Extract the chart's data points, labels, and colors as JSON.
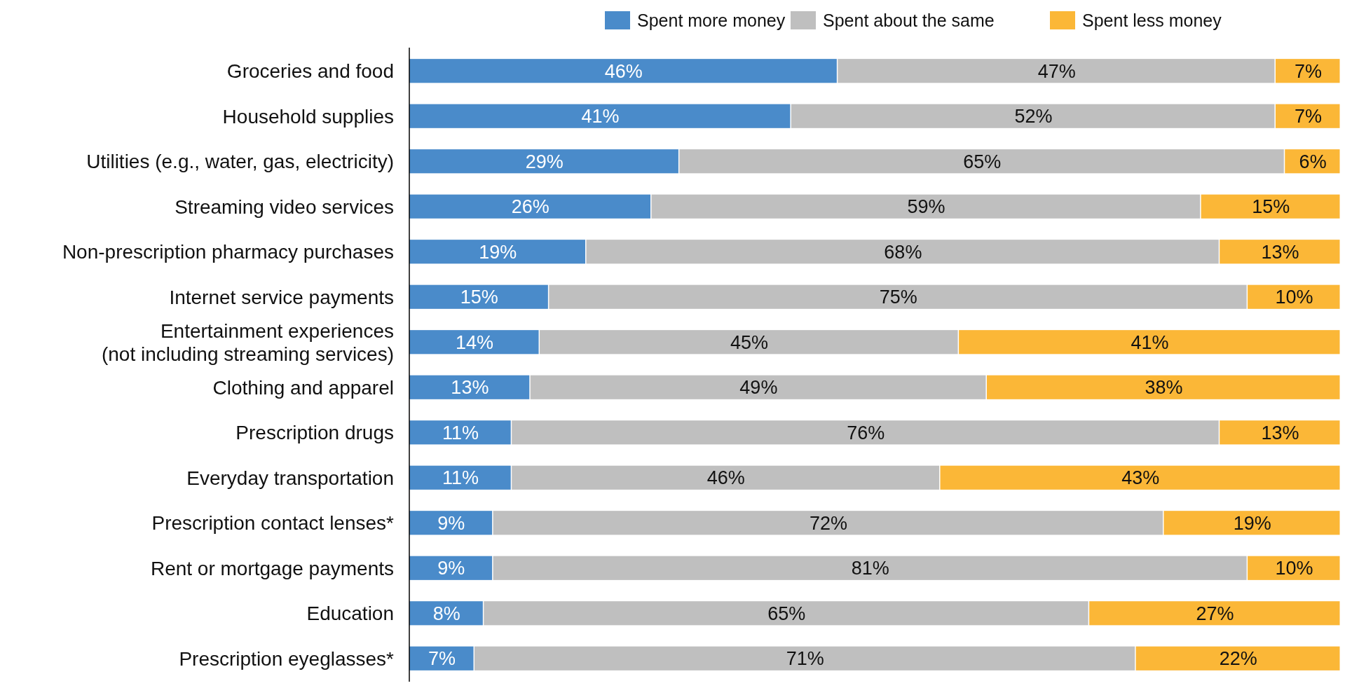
{
  "chart_data": {
    "type": "bar",
    "orientation": "horizontal",
    "stacked": true,
    "legend": "top right",
    "xlim": [
      0,
      100
    ],
    "tick_labels": "y",
    "categories": [
      "Groceries and food",
      "Household supplies",
      "Utilities (e.g., water, gas, electricity)",
      "Streaming video services",
      "Non-prescription pharmacy purchases",
      "Internet service payments",
      "Entertainment experiences (not including streaming services)",
      "Clothing and apparel",
      "Prescription drugs",
      "Everyday transportation",
      "Prescription contact lenses*",
      "Rent or mortgage payments",
      "Education",
      "Prescription eyeglasses*"
    ],
    "series": [
      {
        "name": "Spent more money",
        "color": "#4a8bca",
        "values": [
          46,
          41,
          29,
          26,
          19,
          15,
          14,
          13,
          11,
          11,
          9,
          9,
          8,
          7
        ],
        "value_labels": [
          "46%",
          "41%",
          "29%",
          "26%",
          "19%",
          "15%",
          "14%",
          "13%",
          "11%",
          "11%",
          "9%",
          "9%",
          "8%",
          "7%"
        ]
      },
      {
        "name": "Spent about the same",
        "color": "#bfbfbf",
        "values": [
          47,
          52,
          65,
          59,
          68,
          75,
          45,
          49,
          76,
          46,
          72,
          81,
          65,
          71
        ],
        "value_labels": [
          "47%",
          "52%",
          "65%",
          "59%",
          "68%",
          "75%",
          "45%",
          "49%",
          "76%",
          "46%",
          "72%",
          "81%",
          "65%",
          "71%"
        ]
      },
      {
        "name": "Spent less money",
        "color": "#fbb737",
        "values": [
          7,
          7,
          6,
          15,
          13,
          10,
          41,
          38,
          13,
          43,
          19,
          10,
          27,
          22
        ],
        "value_labels": [
          "7%",
          "7%",
          "6%",
          "15%",
          "13%",
          "10%",
          "41%",
          "38%",
          "13%",
          "43%",
          "19%",
          "10%",
          "27%",
          "22%"
        ]
      }
    ]
  }
}
